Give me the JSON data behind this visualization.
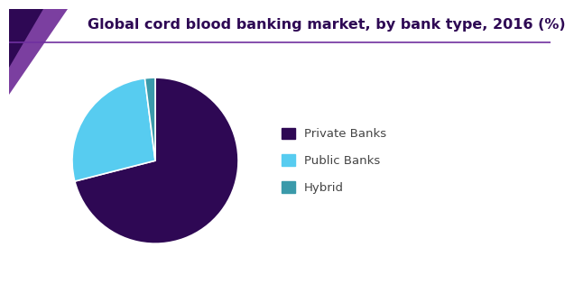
{
  "title": "Global cord blood banking market, by bank type, 2016 (%)",
  "title_color": "#2e0854",
  "title_fontsize": 11.5,
  "slices": [
    {
      "label": "Private Banks",
      "value": 71,
      "color": "#2e0854"
    },
    {
      "label": "Public Banks",
      "value": 27,
      "color": "#57ccf0"
    },
    {
      "label": "Hybrid",
      "value": 2,
      "color": "#3a9aaa"
    }
  ],
  "legend_labels": [
    "Private Banks",
    "Public Banks",
    "Hybrid"
  ],
  "legend_colors": [
    "#2e0854",
    "#57ccf0",
    "#3a9aaa"
  ],
  "background_color": "#ffffff",
  "header_tri_color1": "#7b3fa0",
  "header_tri_color2": "#2e0854",
  "header_line_color": "#7030a0",
  "startangle": 90
}
